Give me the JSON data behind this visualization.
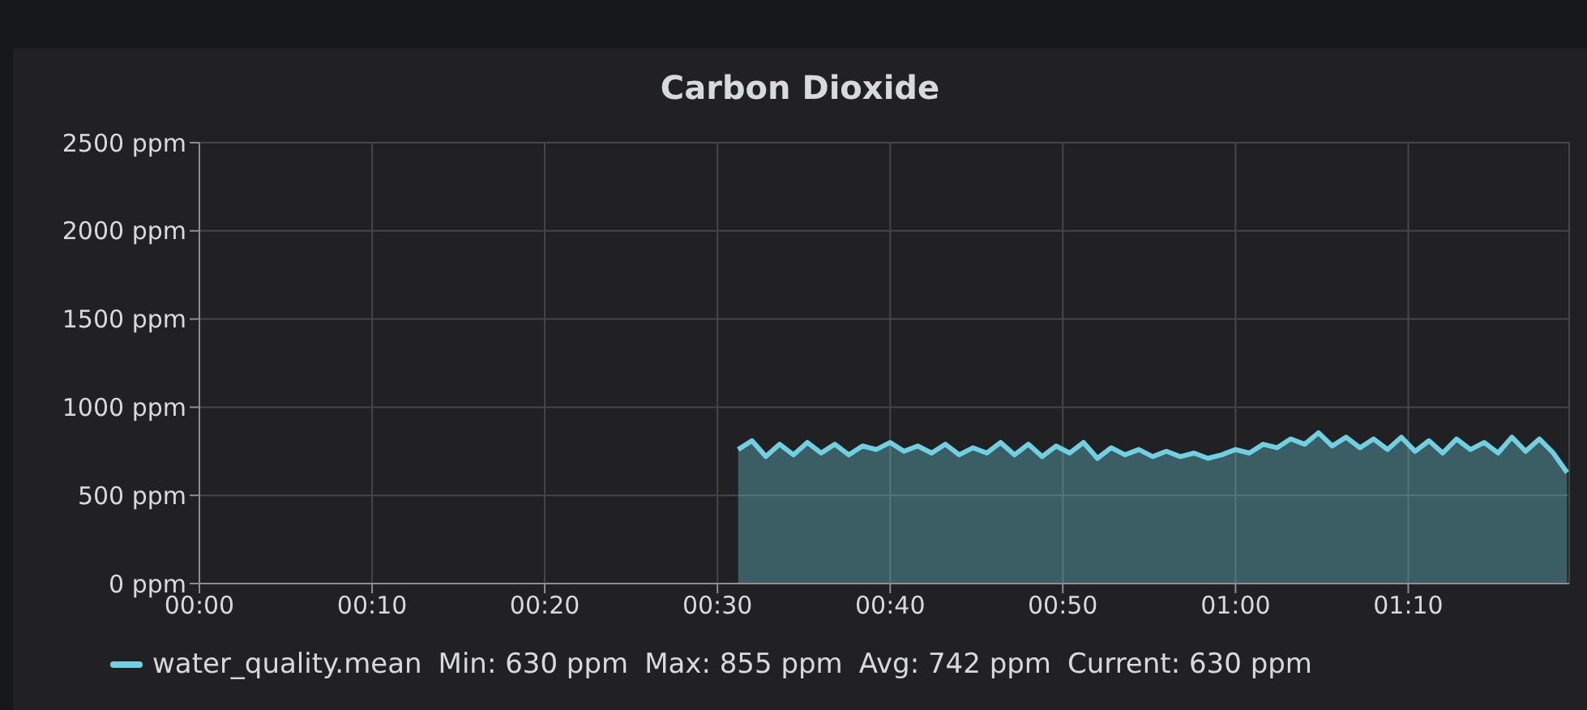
{
  "chart_data": {
    "type": "area",
    "title": "Carbon Dioxide",
    "x": [
      0.52,
      0.5333,
      0.5467,
      0.56,
      0.5733,
      0.5867,
      0.6,
      0.6133,
      0.6267,
      0.64,
      0.6533,
      0.6667,
      0.68,
      0.6933,
      0.7067,
      0.72,
      0.7333,
      0.7467,
      0.76,
      0.7733,
      0.7867,
      0.8,
      0.8133,
      0.8267,
      0.84,
      0.8533,
      0.8667,
      0.88,
      0.8933,
      0.9067,
      0.92,
      0.9333,
      0.9467,
      0.96,
      0.9733,
      0.9867,
      1,
      1.0133,
      1.0267,
      1.04,
      1.0533,
      1.0667,
      1.08,
      1.0933,
      1.1067,
      1.12,
      1.1333,
      1.1467,
      1.16,
      1.1733,
      1.1867,
      1.2,
      1.2133,
      1.2267,
      1.24,
      1.2533,
      1.2667,
      1.28,
      1.2933,
      1.3067,
      1.32
    ],
    "series": [
      {
        "name": "water_quality.mean",
        "color": "#6ed0e0",
        "values": [
          760,
          810,
          720,
          790,
          730,
          800,
          740,
          790,
          730,
          780,
          760,
          800,
          750,
          780,
          740,
          790,
          730,
          770,
          740,
          800,
          730,
          790,
          720,
          780,
          740,
          800,
          710,
          770,
          730,
          760,
          720,
          750,
          720,
          740,
          710,
          730,
          760,
          740,
          790,
          770,
          820,
          790,
          855,
          780,
          830,
          770,
          820,
          760,
          830,
          750,
          810,
          740,
          820,
          760,
          800,
          740,
          830,
          750,
          820,
          740,
          630
        ]
      }
    ],
    "annotations": [
      "Min: 630 ppm",
      "Max: 855 ppm",
      "Avg: 742 ppm",
      "Current: 630 ppm"
    ],
    "xlim": [
      0,
      1.322
    ],
    "xticks": [
      {
        "value": 0,
        "label": "00:00"
      },
      {
        "value": 0.1667,
        "label": "00:10"
      },
      {
        "value": 0.3333,
        "label": "00:20"
      },
      {
        "value": 0.5,
        "label": "00:30"
      },
      {
        "value": 0.6667,
        "label": "00:40"
      },
      {
        "value": 0.8333,
        "label": "00:50"
      },
      {
        "value": 1,
        "label": "01:00"
      },
      {
        "value": 1.1667,
        "label": "01:10"
      }
    ],
    "ylim": [
      0,
      2500
    ],
    "yticks": [
      {
        "value": 0,
        "label": "0 ppm"
      },
      {
        "value": 500,
        "label": "500 ppm"
      },
      {
        "value": 1000,
        "label": "1000 ppm"
      },
      {
        "value": 1500,
        "label": "1500 ppm"
      },
      {
        "value": 2000,
        "label": "2000 ppm"
      },
      {
        "value": 2500,
        "label": "2500 ppm"
      }
    ],
    "grid": true,
    "legend": "bottom"
  }
}
